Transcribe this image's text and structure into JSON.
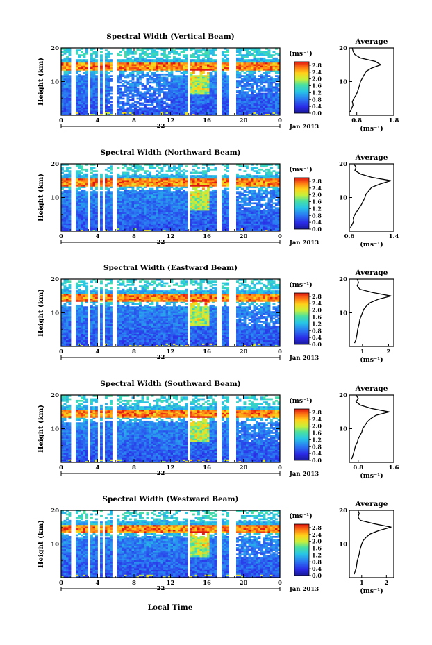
{
  "chart_data": {
    "type": "heatmap",
    "date_label": "Jan 2013",
    "xlabel": "Local Time",
    "ylabel": "Height (km)",
    "unit": "(ms⁻¹)",
    "day_label": "22",
    "average_title": "Average",
    "average_xlabel": "(ms⁻¹)",
    "x_ticks": [
      "0",
      "4",
      "8",
      "12",
      "16",
      "20",
      "0"
    ],
    "y_ticks": [
      "10",
      "20"
    ],
    "ylim": [
      0,
      20
    ],
    "xlim": [
      0,
      24
    ],
    "colorbar_ticks": [
      "0.0",
      "0.4",
      "0.8",
      "1.2",
      "1.6",
      "2.0",
      "2.4",
      "2.8"
    ],
    "colorbar_range": [
      0,
      3.0
    ],
    "data_gaps_hours": [
      [
        0.95,
        1.5
      ],
      [
        2.85,
        3.15
      ],
      [
        3.9,
        4.2
      ],
      [
        4.6,
        4.9
      ],
      [
        5.65,
        6.0
      ],
      [
        13.75,
        14.1
      ],
      [
        17.1,
        17.55
      ],
      [
        18.3,
        19.3
      ]
    ],
    "panels": [
      {
        "title": "Spectral Width (Vertical Beam)",
        "avg_ticks": [
          "0.8",
          "1.8"
        ],
        "avg_xlim": [
          0.6,
          1.8
        ],
        "avg_profile": {
          "height_km": [
            1,
            2,
            3,
            4,
            5,
            6,
            7,
            8,
            9,
            10,
            11,
            12,
            13,
            14,
            15,
            16,
            17,
            18,
            19,
            20
          ],
          "value": [
            0.62,
            0.66,
            0.7,
            0.68,
            0.72,
            0.78,
            0.82,
            0.85,
            0.88,
            0.9,
            0.95,
            1.0,
            1.05,
            1.2,
            1.45,
            1.3,
            0.9,
            0.75,
            0.7,
            0.68
          ]
        }
      },
      {
        "title": "Spectral Width (Northward Beam)",
        "avg_ticks": [
          "0.6",
          "1.4"
        ],
        "avg_xlim": [
          0.6,
          1.4
        ],
        "avg_profile": {
          "height_km": [
            1,
            2,
            3,
            4,
            5,
            6,
            7,
            8,
            9,
            10,
            11,
            12,
            13,
            14,
            15,
            16,
            17,
            18,
            19,
            20
          ],
          "value": [
            0.62,
            0.65,
            0.68,
            0.67,
            0.7,
            0.74,
            0.78,
            0.82,
            0.85,
            0.88,
            0.9,
            0.95,
            1.0,
            1.15,
            1.35,
            1.0,
            0.8,
            0.7,
            0.72,
            0.68
          ]
        }
      },
      {
        "title": "Spectral Width (Eastward Beam)",
        "avg_ticks": [
          "1",
          "2"
        ],
        "avg_xlim": [
          0.5,
          2.2
        ],
        "avg_profile": {
          "height_km": [
            1,
            2,
            3,
            4,
            5,
            6,
            7,
            8,
            9,
            10,
            11,
            12,
            13,
            14,
            15,
            16,
            17,
            18,
            19,
            20
          ],
          "value": [
            0.7,
            0.75,
            0.78,
            0.8,
            0.82,
            0.85,
            0.88,
            0.9,
            0.95,
            1.0,
            1.05,
            1.15,
            1.3,
            1.6,
            2.1,
            1.4,
            0.9,
            0.8,
            0.85,
            0.8
          ]
        }
      },
      {
        "title": "Spectral Width (Southward Beam)",
        "avg_ticks": [
          "0.8",
          "1.6"
        ],
        "avg_xlim": [
          0.6,
          1.6
        ],
        "avg_profile": {
          "height_km": [
            1,
            2,
            3,
            4,
            5,
            6,
            7,
            8,
            9,
            10,
            11,
            12,
            13,
            14,
            15,
            16,
            17,
            18,
            19,
            20
          ],
          "value": [
            0.65,
            0.68,
            0.7,
            0.72,
            0.74,
            0.78,
            0.8,
            0.84,
            0.88,
            0.9,
            0.95,
            1.0,
            1.08,
            1.2,
            1.5,
            1.1,
            0.85,
            0.75,
            0.8,
            0.75
          ]
        }
      },
      {
        "title": "Spectral Width (Westward Beam)",
        "avg_ticks": [
          "1",
          "2"
        ],
        "avg_xlim": [
          0.5,
          2.3
        ],
        "avg_profile": {
          "height_km": [
            1,
            2,
            3,
            4,
            5,
            6,
            7,
            8,
            9,
            10,
            11,
            12,
            13,
            14,
            15,
            16,
            17,
            18,
            19,
            20
          ],
          "value": [
            0.7,
            0.74,
            0.78,
            0.8,
            0.82,
            0.86,
            0.9,
            0.92,
            0.96,
            1.0,
            1.06,
            1.18,
            1.35,
            1.7,
            2.2,
            1.5,
            0.95,
            0.85,
            0.9,
            0.85
          ]
        }
      }
    ]
  }
}
